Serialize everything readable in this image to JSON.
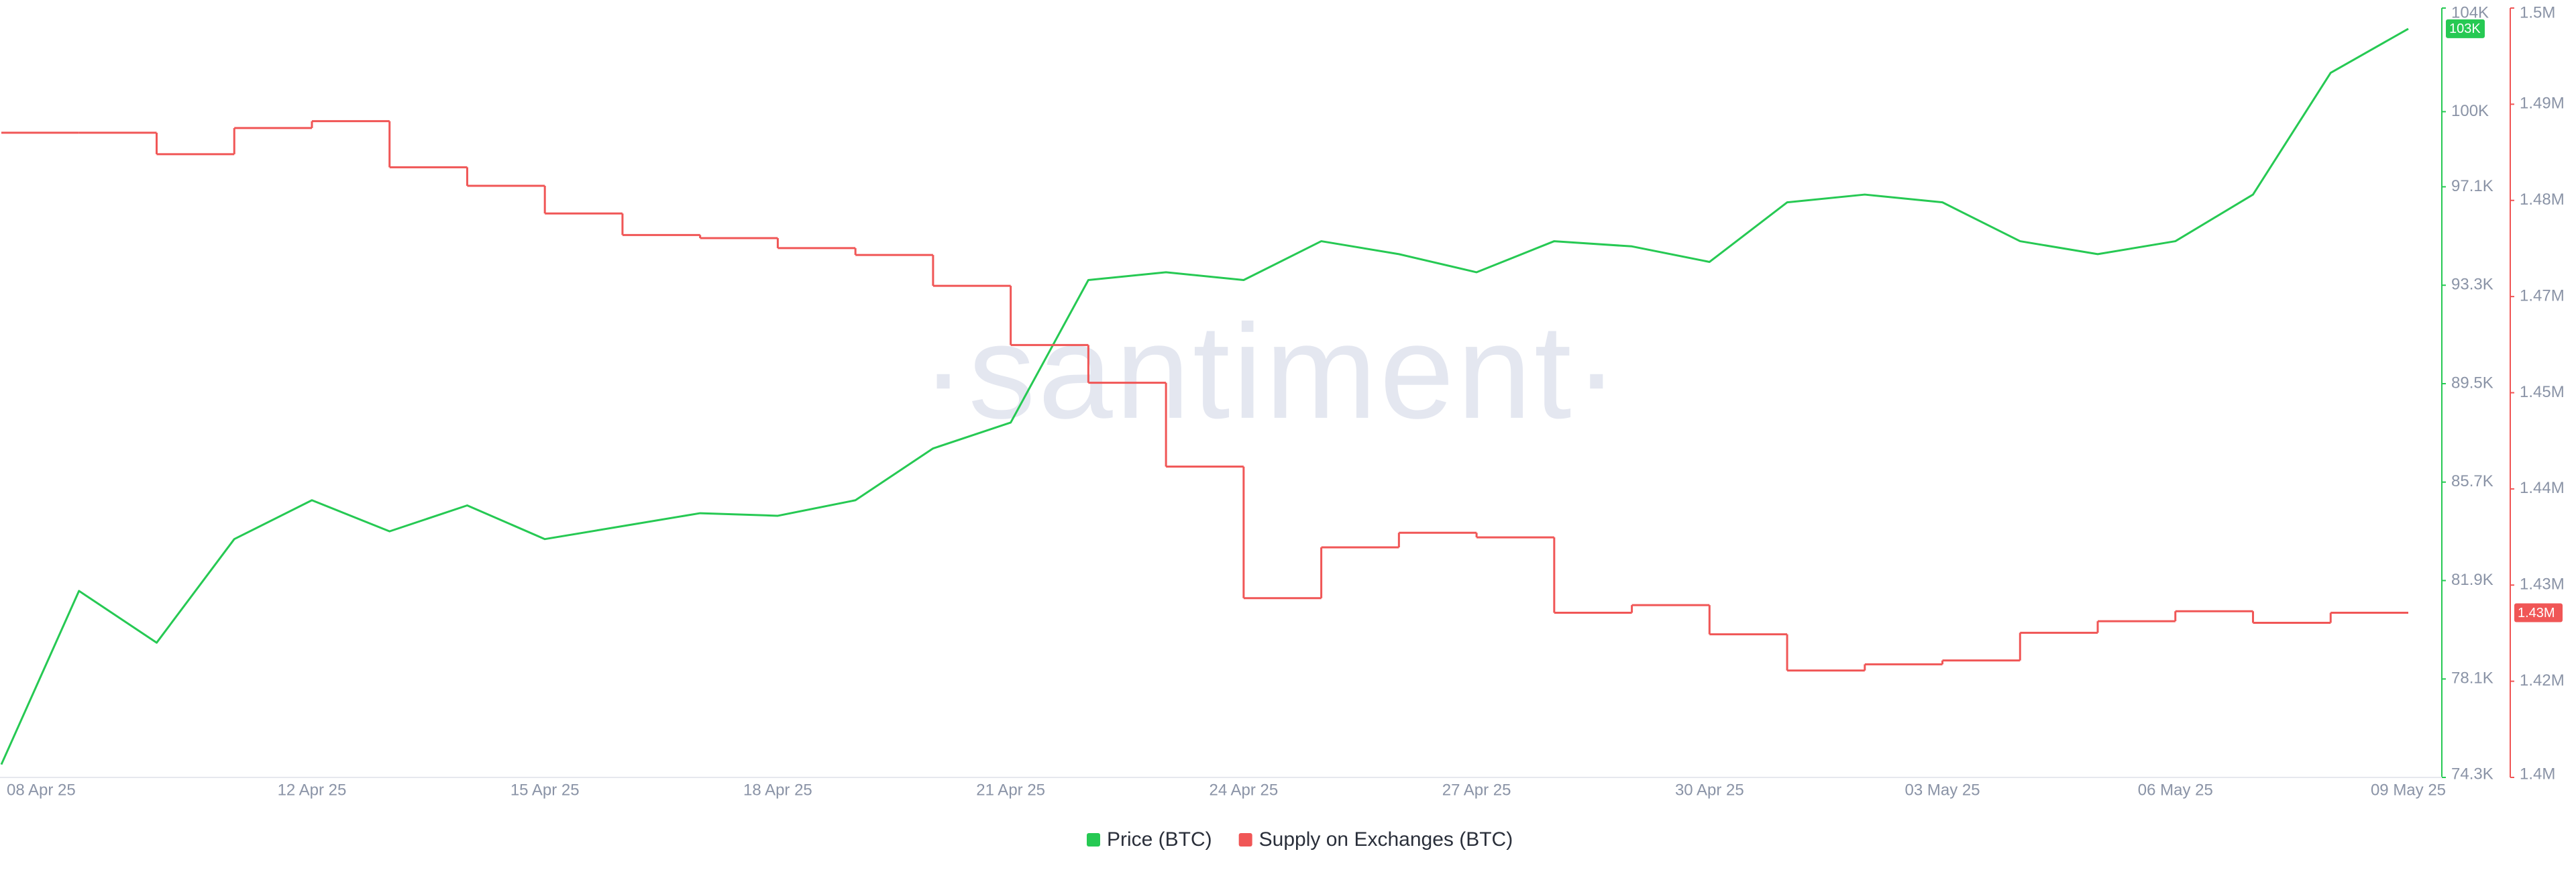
{
  "chart_data": {
    "type": "line",
    "categories": [
      "08 Apr 25",
      null,
      null,
      null,
      "12 Apr 25",
      null,
      null,
      "15 Apr 25",
      null,
      null,
      "18 Apr 25",
      null,
      null,
      "21 Apr 25",
      null,
      null,
      "24 Apr 25",
      null,
      null,
      "27 Apr 25",
      null,
      null,
      "30 Apr 25",
      null,
      null,
      "03 May 25",
      null,
      null,
      "06 May 25",
      null,
      null,
      "09 May 25"
    ],
    "series": [
      {
        "name": "Price (BTC)",
        "color": "#26c953",
        "axis": "y",
        "values": [
          74800,
          81500,
          79500,
          83500,
          85000,
          83800,
          84800,
          83500,
          84000,
          84500,
          84400,
          85000,
          87000,
          88000,
          93500,
          93800,
          93500,
          95000,
          94500,
          93800,
          95000,
          94800,
          94200,
          96500,
          96800,
          96500,
          95000,
          94500,
          95000,
          96800,
          101500,
          103200
        ],
        "last_value_label": "103K"
      },
      {
        "name": "Supply on Exchanges (BTC)",
        "color": "#f05656",
        "axis": "y2",
        "step": true,
        "values": [
          1488300,
          1488300,
          1485500,
          1488900,
          1489800,
          1483800,
          1481400,
          1477800,
          1475000,
          1474600,
          1473300,
          1472400,
          1468400,
          1460700,
          1455800,
          1444900,
          1427800,
          1434400,
          1436300,
          1435700,
          1425900,
          1426900,
          1423100,
          1418400,
          1419200,
          1419700,
          1423300,
          1424800,
          1426100,
          1424600,
          1425900,
          1425900
        ],
        "last_value_label": "1.43M"
      }
    ],
    "ylim": [
      74300,
      104000
    ],
    "yticks": [
      {
        "value": 74300,
        "label": "74.3K"
      },
      {
        "value": 78100,
        "label": "78.1K"
      },
      {
        "value": 81900,
        "label": "81.9K"
      },
      {
        "value": 85700,
        "label": "85.7K"
      },
      {
        "value": 89500,
        "label": "89.5K"
      },
      {
        "value": 93300,
        "label": "93.3K"
      },
      {
        "value": 97100,
        "label": "97.1K"
      },
      {
        "value": 100000,
        "label": "100K"
      },
      {
        "value": 104000,
        "label": "104K"
      }
    ],
    "y2lim": [
      1404500,
      1504500
    ],
    "y2ticks": [
      {
        "value": 1404500,
        "label": "1.4M"
      },
      {
        "value": 1417000,
        "label": "1.42M"
      },
      {
        "value": 1429500,
        "label": "1.43M"
      },
      {
        "value": 1442000,
        "label": "1.44M"
      },
      {
        "value": 1454500,
        "label": "1.45M"
      },
      {
        "value": 1467000,
        "label": "1.47M"
      },
      {
        "value": 1479500,
        "label": "1.48M"
      },
      {
        "value": 1492000,
        "label": "1.49M"
      },
      {
        "value": 1504500,
        "label": "1.5M"
      }
    ],
    "watermark": "·santiment·",
    "grid": false
  }
}
